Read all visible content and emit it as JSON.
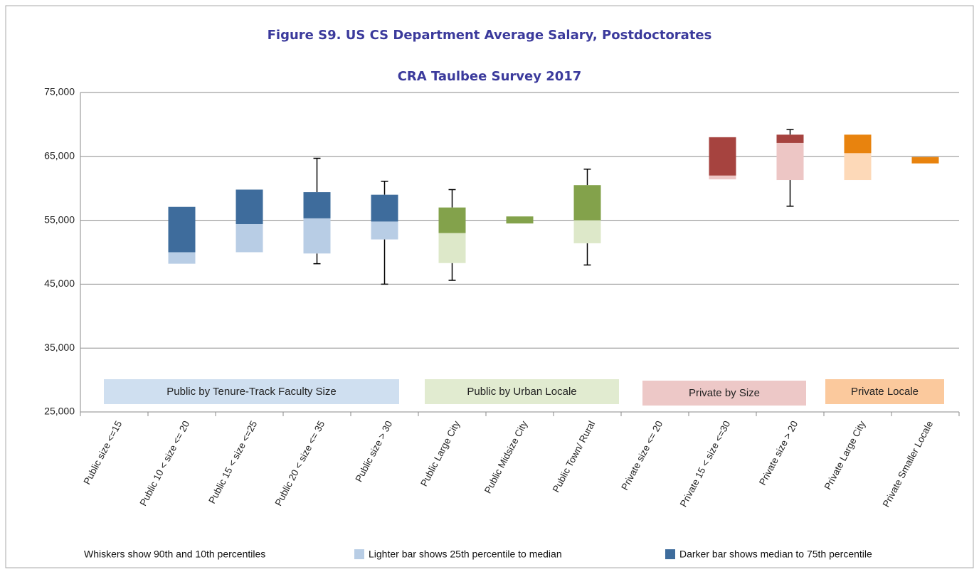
{
  "chart_data": {
    "type": "box",
    "title": "Figure S9. US CS Department Average Salary, Postdoctorates",
    "subtitle": "CRA Taulbee Survey 2017",
    "categories": [
      "Public size <=15",
      "Public 10 < size <= 20",
      "Public 15 < size <=25",
      "Public 20 < size <= 35",
      "Public size > 30",
      "Public Large City",
      "Public Midsize City",
      "Public Town/ Rural",
      "Private size <= 20",
      "Private 15 < size <=30",
      "Private size > 20",
      "Private Large City",
      "Private Smaller Locale"
    ],
    "p10": [
      null,
      null,
      null,
      48200,
      45000,
      45600,
      null,
      48000,
      null,
      null,
      57200,
      null,
      null
    ],
    "q1": [
      null,
      48200,
      50000,
      49800,
      52000,
      48300,
      54500,
      51400,
      null,
      61400,
      61300,
      61300,
      63900
    ],
    "median": [
      null,
      50000,
      54400,
      55300,
      54800,
      53000,
      54500,
      55000,
      null,
      62000,
      67100,
      65500,
      63900
    ],
    "q3": [
      null,
      57100,
      59800,
      59400,
      59000,
      57000,
      55600,
      60500,
      null,
      68000,
      68400,
      68400,
      64900
    ],
    "p90": [
      null,
      null,
      null,
      64700,
      61100,
      59800,
      null,
      63000,
      null,
      null,
      69200,
      null,
      null
    ],
    "color_dark": [
      "#3e6c9c",
      "#3e6c9c",
      "#3e6c9c",
      "#3e6c9c",
      "#3e6c9c",
      "#83a24b",
      "#83a24b",
      "#83a24b",
      "#a6433f",
      "#a6433f",
      "#a6433f",
      "#e8830e",
      "#e8830e"
    ],
    "color_light": [
      "#b8cde5",
      "#b8cde5",
      "#b8cde5",
      "#b8cde5",
      "#b8cde5",
      "#dde8c9",
      "#dde8c9",
      "#dde8c9",
      "#edc6c5",
      "#edc6c5",
      "#edc6c5",
      "#fdd9b8",
      "#fdd9b8"
    ],
    "ylim": [
      25000,
      75000
    ],
    "yticks": [
      {
        "value": 25000,
        "label": "25,000"
      },
      {
        "value": 35000,
        "label": "35,000"
      },
      {
        "value": 45000,
        "label": "45,000"
      },
      {
        "value": 55000,
        "label": "55,000"
      },
      {
        "value": 65000,
        "label": "65,000"
      },
      {
        "value": 75000,
        "label": "75,000"
      }
    ],
    "grid": true,
    "groups": [
      {
        "label": "Public by Tenure-Track Faculty Size",
        "color": "#cfdff0"
      },
      {
        "label": "Public by Urban Locale",
        "color": "#e1ebd0"
      },
      {
        "label": "Private by Size",
        "color": "#edc8c7"
      },
      {
        "label": "Private Locale",
        "color": "#fbc99d"
      }
    ],
    "legend": [
      {
        "label": "Whiskers show 90th and 10th percentiles"
      },
      {
        "label": "Lighter bar shows 25th percentile to median",
        "color": "#b8cde5"
      },
      {
        "label": "Darker bar shows median to 75th percentile",
        "color": "#3e6c9c"
      }
    ]
  }
}
